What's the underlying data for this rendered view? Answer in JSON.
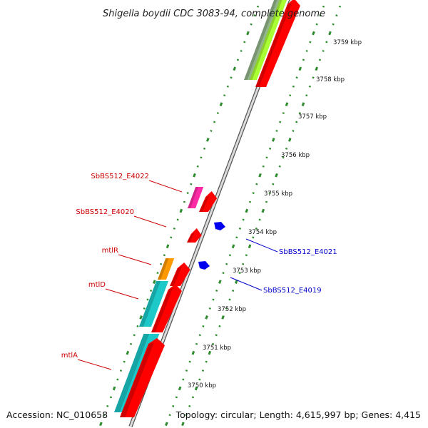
{
  "title": "Shigella boydii CDC 3083-94, complete genome",
  "footer": {
    "accession": "Accession: NC_010658",
    "topology": "Topology: circular; Length: 4,615,997 bp; Genes: 4,415"
  },
  "colors": {
    "backbone": "#9a9a9a",
    "tick_marks": "#2e8b2e",
    "red_strand": "#ff0000",
    "blue_strand": "#0000ee",
    "label_red": "#cc0000",
    "label_blue": "#0000cc",
    "cyan": "#1cc8c8",
    "orange": "#ff9900",
    "magenta": "#ff2aa5",
    "lime": "#aaff33",
    "sage": "#93b58a"
  },
  "axis": {
    "unit": "kbp",
    "ticks": [
      "3750 kbp",
      "3751 kbp",
      "3752 kbp",
      "3753 kbp",
      "3754 kbp",
      "3755 kbp",
      "3756 kbp",
      "3757 kbp",
      "3758 kbp",
      "3759 kbp"
    ]
  },
  "genes_left": [
    {
      "label": "SbBS512_E4022",
      "color": "#cc0000"
    },
    {
      "label": "SbBS512_E4020",
      "color": "#cc0000"
    },
    {
      "label": "mtlR",
      "color": "#cc0000"
    },
    {
      "label": "mtlD",
      "color": "#cc0000"
    },
    {
      "label": "mtlA",
      "color": "#cc0000"
    }
  ],
  "genes_right": [
    {
      "label": "SbBS512_E4021",
      "color": "#0000cc"
    },
    {
      "label": "SbBS512_E4019",
      "color": "#0000cc"
    }
  ]
}
